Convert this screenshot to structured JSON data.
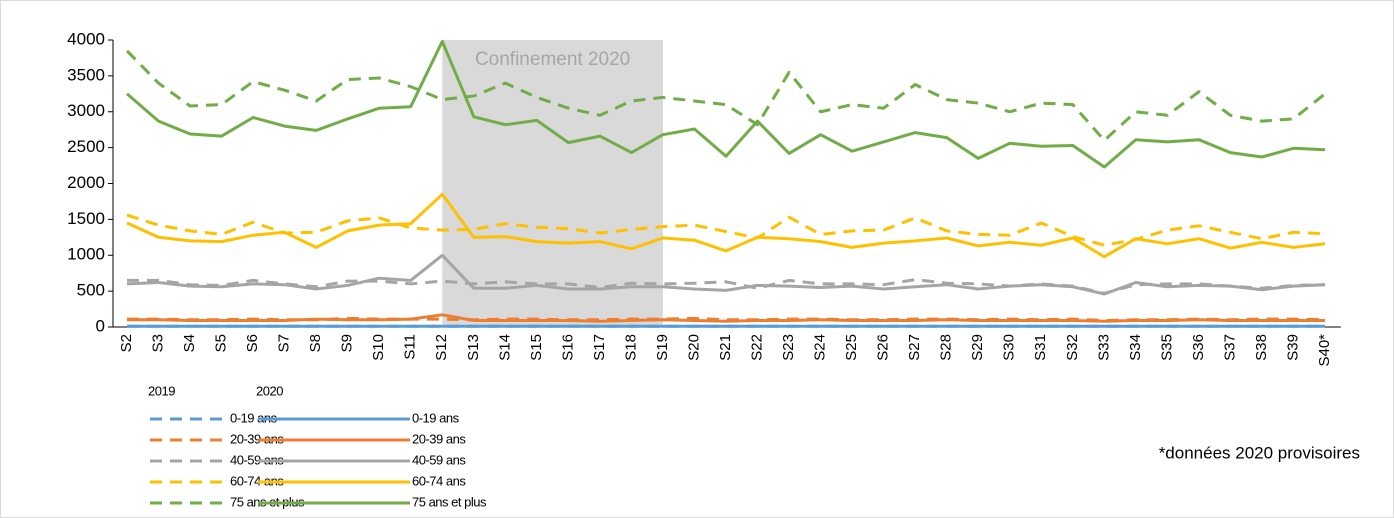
{
  "chart_data": {
    "type": "line",
    "categories": [
      "S2",
      "S3",
      "S4",
      "S5",
      "S6",
      "S7",
      "S8",
      "S9",
      "S10",
      "S11",
      "S12",
      "S13",
      "S14",
      "S15",
      "S16",
      "S17",
      "S18",
      "S19",
      "S20",
      "S21",
      "S22",
      "S23",
      "S24",
      "S25",
      "S26",
      "S27",
      "S28",
      "S29",
      "S30",
      "S31",
      "S32",
      "S33",
      "S34",
      "S35",
      "S36",
      "S37",
      "S38",
      "S39",
      "S40*"
    ],
    "ylim": [
      0,
      4000
    ],
    "yticks": [
      0,
      500,
      1000,
      1500,
      2000,
      2500,
      3000,
      3500,
      4000
    ],
    "shade": {
      "from": "S12",
      "to": "S19",
      "label": "Confinement 2020",
      "color": "#d9d9d9"
    },
    "legend_titles": [
      "2019",
      "2020"
    ],
    "note": "*données 2020 provisoires",
    "series": [
      {
        "name": "0-19 ans",
        "color": "#5b9bd5",
        "dash": true,
        "values": [
          10,
          10,
          10,
          10,
          10,
          10,
          10,
          10,
          10,
          10,
          10,
          10,
          10,
          10,
          10,
          10,
          10,
          10,
          10,
          10,
          10,
          10,
          10,
          10,
          10,
          10,
          10,
          10,
          10,
          10,
          10,
          10,
          10,
          10,
          10,
          10,
          10,
          10,
          10
        ]
      },
      {
        "name": "20-39 ans",
        "color": "#ed7d31",
        "dash": true,
        "values": [
          110,
          110,
          100,
          100,
          110,
          100,
          100,
          120,
          110,
          110,
          110,
          100,
          110,
          110,
          100,
          100,
          110,
          110,
          120,
          100,
          100,
          110,
          110,
          100,
          100,
          110,
          110,
          100,
          110,
          100,
          110,
          90,
          100,
          100,
          110,
          100,
          110,
          110,
          100
        ]
      },
      {
        "name": "40-59 ans",
        "color": "#a5a5a5",
        "dash": true,
        "values": [
          650,
          650,
          590,
          580,
          650,
          600,
          560,
          640,
          640,
          600,
          640,
          600,
          630,
          600,
          600,
          550,
          610,
          600,
          610,
          630,
          540,
          650,
          600,
          600,
          590,
          660,
          610,
          600,
          570,
          600,
          570,
          470,
          590,
          600,
          600,
          570,
          540,
          580,
          590
        ]
      },
      {
        "name": "60-74 ans",
        "color": "#ffc000",
        "dash": true,
        "values": [
          1560,
          1420,
          1340,
          1290,
          1460,
          1310,
          1320,
          1480,
          1520,
          1380,
          1350,
          1360,
          1440,
          1390,
          1370,
          1310,
          1360,
          1400,
          1420,
          1330,
          1240,
          1530,
          1290,
          1340,
          1350,
          1520,
          1340,
          1290,
          1280,
          1450,
          1260,
          1140,
          1220,
          1350,
          1410,
          1320,
          1230,
          1320,
          1300
        ]
      },
      {
        "name": "75 ans et plus",
        "color": "#70ad47",
        "dash": true,
        "values": [
          3850,
          3400,
          3080,
          3100,
          3420,
          3300,
          3150,
          3450,
          3470,
          3350,
          3170,
          3220,
          3400,
          3200,
          3050,
          2950,
          3150,
          3200,
          3150,
          3100,
          2820,
          3550,
          3000,
          3100,
          3050,
          3380,
          3170,
          3120,
          3000,
          3120,
          3100,
          2600,
          3000,
          2950,
          3280,
          2950,
          2870,
          2900,
          3250
        ]
      },
      {
        "name": "0-19 ans",
        "color": "#5b9bd5",
        "dash": false,
        "values": [
          10,
          10,
          10,
          10,
          10,
          10,
          10,
          10,
          10,
          10,
          10,
          10,
          10,
          10,
          10,
          10,
          10,
          10,
          10,
          10,
          10,
          10,
          10,
          10,
          10,
          10,
          10,
          10,
          10,
          10,
          10,
          10,
          10,
          10,
          10,
          10,
          10,
          10,
          10
        ]
      },
      {
        "name": "20-39 ans",
        "color": "#ed7d31",
        "dash": false,
        "values": [
          100,
          100,
          90,
          90,
          90,
          90,
          110,
          100,
          100,
          110,
          170,
          90,
          90,
          90,
          90,
          80,
          90,
          100,
          90,
          80,
          90,
          90,
          100,
          90,
          90,
          90,
          100,
          90,
          90,
          90,
          90,
          80,
          90,
          90,
          100,
          90,
          90,
          90,
          90
        ]
      },
      {
        "name": "40-59 ans",
        "color": "#a5a5a5",
        "dash": false,
        "values": [
          600,
          620,
          570,
          560,
          600,
          590,
          530,
          580,
          680,
          650,
          1000,
          540,
          540,
          580,
          530,
          530,
          560,
          560,
          530,
          510,
          580,
          570,
          550,
          570,
          530,
          560,
          590,
          530,
          570,
          590,
          560,
          460,
          620,
          560,
          580,
          570,
          520,
          570,
          590
        ]
      },
      {
        "name": "60-74 ans",
        "color": "#ffc000",
        "dash": false,
        "values": [
          1450,
          1250,
          1200,
          1190,
          1280,
          1320,
          1110,
          1340,
          1420,
          1440,
          1850,
          1250,
          1260,
          1190,
          1170,
          1190,
          1090,
          1240,
          1210,
          1060,
          1250,
          1230,
          1190,
          1110,
          1170,
          1200,
          1240,
          1130,
          1180,
          1140,
          1240,
          980,
          1230,
          1160,
          1230,
          1100,
          1180,
          1110,
          1160
        ]
      },
      {
        "name": "75 ans et plus",
        "color": "#70ad47",
        "dash": false,
        "values": [
          3250,
          2870,
          2690,
          2660,
          2920,
          2800,
          2740,
          2900,
          3050,
          3070,
          3980,
          2930,
          2820,
          2880,
          2570,
          2660,
          2430,
          2680,
          2760,
          2380,
          2870,
          2420,
          2680,
          2450,
          2580,
          2710,
          2640,
          2350,
          2560,
          2520,
          2530,
          2230,
          2610,
          2580,
          2610,
          2430,
          2370,
          2490,
          2470
        ]
      }
    ]
  }
}
